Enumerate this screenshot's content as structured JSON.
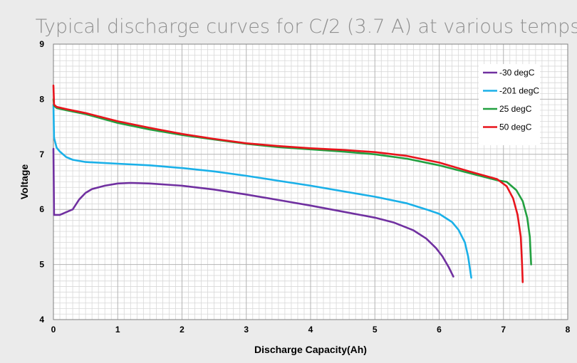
{
  "chart_data": {
    "type": "line",
    "title": "Typical discharge curves for C/2 (3.7 A) at various temps",
    "xlabel": "Discharge Capacity(Ah)",
    "ylabel": "Voltage",
    "xlim": [
      0,
      8
    ],
    "ylim": [
      4,
      9
    ],
    "xticks": [
      "0",
      "1",
      "2",
      "3",
      "4",
      "5",
      "6",
      "7",
      "8"
    ],
    "yticks": [
      "4",
      "5",
      "6",
      "7",
      "8",
      "9"
    ],
    "grid": true,
    "legend_position": "top-right",
    "series": [
      {
        "name": "-30 degC",
        "color": "#7030a0",
        "points": [
          [
            0,
            7.1
          ],
          [
            0.01,
            5.9
          ],
          [
            0.1,
            5.9
          ],
          [
            0.2,
            5.95
          ],
          [
            0.3,
            6.0
          ],
          [
            0.4,
            6.18
          ],
          [
            0.5,
            6.3
          ],
          [
            0.6,
            6.37
          ],
          [
            0.8,
            6.43
          ],
          [
            1.0,
            6.47
          ],
          [
            1.2,
            6.48
          ],
          [
            1.5,
            6.47
          ],
          [
            2.0,
            6.43
          ],
          [
            2.5,
            6.36
          ],
          [
            3.0,
            6.27
          ],
          [
            3.5,
            6.17
          ],
          [
            4.0,
            6.07
          ],
          [
            4.5,
            5.96
          ],
          [
            5.0,
            5.85
          ],
          [
            5.3,
            5.76
          ],
          [
            5.6,
            5.62
          ],
          [
            5.8,
            5.47
          ],
          [
            5.95,
            5.3
          ],
          [
            6.05,
            5.15
          ],
          [
            6.15,
            4.95
          ],
          [
            6.22,
            4.78
          ]
        ]
      },
      {
        "name": "-201 degC",
        "color": "#1ab0e8",
        "points": [
          [
            0,
            7.9
          ],
          [
            0.01,
            7.3
          ],
          [
            0.05,
            7.12
          ],
          [
            0.1,
            7.05
          ],
          [
            0.2,
            6.95
          ],
          [
            0.3,
            6.9
          ],
          [
            0.5,
            6.86
          ],
          [
            1.0,
            6.83
          ],
          [
            1.5,
            6.8
          ],
          [
            2.0,
            6.75
          ],
          [
            2.5,
            6.69
          ],
          [
            3.0,
            6.61
          ],
          [
            3.5,
            6.52
          ],
          [
            4.0,
            6.43
          ],
          [
            4.5,
            6.33
          ],
          [
            5.0,
            6.23
          ],
          [
            5.5,
            6.11
          ],
          [
            5.8,
            6.0
          ],
          [
            6.0,
            5.92
          ],
          [
            6.2,
            5.77
          ],
          [
            6.3,
            5.63
          ],
          [
            6.4,
            5.4
          ],
          [
            6.45,
            5.15
          ],
          [
            6.5,
            4.76
          ]
        ]
      },
      {
        "name": "25 degC",
        "color": "#22a040",
        "points": [
          [
            0,
            8.0
          ],
          [
            0.01,
            7.88
          ],
          [
            0.05,
            7.84
          ],
          [
            0.2,
            7.8
          ],
          [
            0.5,
            7.73
          ],
          [
            1.0,
            7.57
          ],
          [
            1.5,
            7.45
          ],
          [
            2.0,
            7.35
          ],
          [
            2.5,
            7.27
          ],
          [
            3.0,
            7.19
          ],
          [
            3.5,
            7.13
          ],
          [
            4.0,
            7.09
          ],
          [
            4.5,
            7.05
          ],
          [
            5.0,
            7.0
          ],
          [
            5.5,
            6.92
          ],
          [
            6.0,
            6.8
          ],
          [
            6.5,
            6.65
          ],
          [
            6.9,
            6.53
          ],
          [
            7.05,
            6.5
          ],
          [
            7.2,
            6.35
          ],
          [
            7.3,
            6.15
          ],
          [
            7.37,
            5.85
          ],
          [
            7.41,
            5.5
          ],
          [
            7.43,
            5.0
          ]
        ]
      },
      {
        "name": "50 degC",
        "color": "#e8141c",
        "points": [
          [
            0,
            8.25
          ],
          [
            0.01,
            7.9
          ],
          [
            0.05,
            7.86
          ],
          [
            0.2,
            7.82
          ],
          [
            0.5,
            7.75
          ],
          [
            1.0,
            7.6
          ],
          [
            1.5,
            7.48
          ],
          [
            2.0,
            7.37
          ],
          [
            2.5,
            7.28
          ],
          [
            3.0,
            7.2
          ],
          [
            3.5,
            7.15
          ],
          [
            4.0,
            7.11
          ],
          [
            4.5,
            7.08
          ],
          [
            5.0,
            7.04
          ],
          [
            5.5,
            6.97
          ],
          [
            6.0,
            6.85
          ],
          [
            6.5,
            6.68
          ],
          [
            6.9,
            6.55
          ],
          [
            7.05,
            6.42
          ],
          [
            7.15,
            6.2
          ],
          [
            7.22,
            5.9
          ],
          [
            7.27,
            5.5
          ],
          [
            7.29,
            5.0
          ],
          [
            7.3,
            4.68
          ]
        ]
      }
    ]
  }
}
